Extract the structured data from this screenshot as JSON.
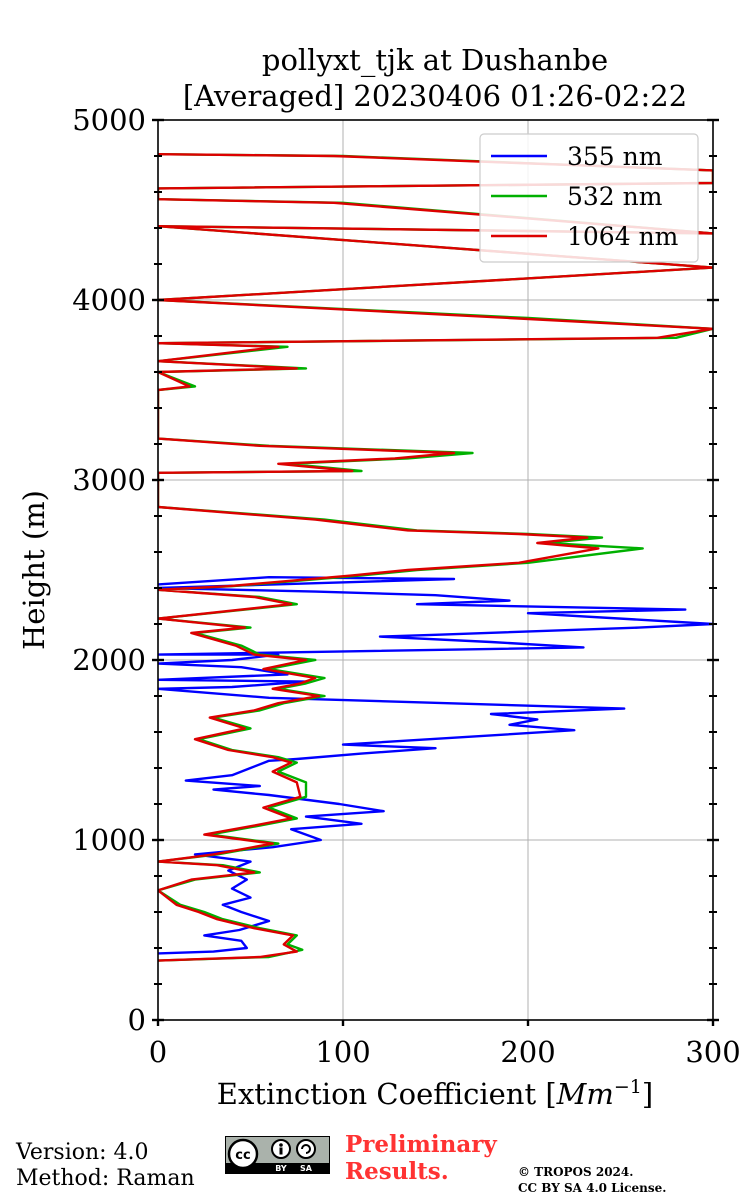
{
  "chart_data": {
    "type": "line",
    "title": [
      "pollyxt_tjk at Dushanbe",
      "[Averaged] 20230406 01:26-02:22"
    ],
    "xlabel": "Extinction Coefficient [$Mm^{-1}$]",
    "xlabel_display": {
      "prefix": "Extinction Coefficient [",
      "unit_base": "Mm",
      "unit_exp": "−1",
      "suffix": "]"
    },
    "ylabel": "Height (m)",
    "xlim": [
      0,
      300
    ],
    "ylim": [
      0,
      5000
    ],
    "xticks": [
      0,
      100,
      200,
      300
    ],
    "yticks": [
      0,
      1000,
      2000,
      3000,
      4000,
      5000
    ],
    "grid": true,
    "legend_position": "top-right",
    "series": [
      {
        "name": "355 nm",
        "color": "#0000ff",
        "points": [
          [
            0,
            370
          ],
          [
            30,
            380
          ],
          [
            48,
            400
          ],
          [
            45,
            440
          ],
          [
            25,
            470
          ],
          [
            44,
            500
          ],
          [
            60,
            550
          ],
          [
            45,
            600
          ],
          [
            35,
            640
          ],
          [
            50,
            680
          ],
          [
            40,
            730
          ],
          [
            48,
            780
          ],
          [
            38,
            830
          ],
          [
            50,
            880
          ],
          [
            20,
            920
          ],
          [
            62,
            960
          ],
          [
            88,
            1000
          ],
          [
            72,
            1060
          ],
          [
            110,
            1090
          ],
          [
            80,
            1130
          ],
          [
            122,
            1160
          ],
          [
            98,
            1200
          ],
          [
            60,
            1250
          ],
          [
            30,
            1280
          ],
          [
            55,
            1300
          ],
          [
            15,
            1330
          ],
          [
            40,
            1360
          ],
          [
            50,
            1400
          ],
          [
            60,
            1440
          ],
          [
            75,
            1450
          ],
          [
            110,
            1480
          ],
          [
            150,
            1510
          ],
          [
            100,
            1530
          ],
          [
            225,
            1610
          ],
          [
            190,
            1640
          ],
          [
            205,
            1670
          ],
          [
            180,
            1700
          ],
          [
            252,
            1730
          ],
          [
            60,
            1790
          ],
          [
            0,
            1840
          ],
          [
            40,
            1850
          ],
          [
            80,
            1880
          ],
          [
            0,
            1890
          ],
          [
            70,
            1920
          ],
          [
            45,
            1960
          ],
          [
            0,
            1980
          ],
          [
            40,
            2000
          ],
          [
            65,
            2030
          ],
          [
            0,
            2030
          ],
          [
            230,
            2070
          ],
          [
            180,
            2100
          ],
          [
            120,
            2130
          ],
          [
            150,
            2140
          ],
          [
            260,
            2180
          ],
          [
            300,
            2200
          ],
          [
            200,
            2260
          ],
          [
            285,
            2280
          ],
          [
            140,
            2310
          ],
          [
            190,
            2330
          ],
          [
            150,
            2360
          ],
          [
            85,
            2380
          ],
          [
            0,
            2400
          ],
          [
            160,
            2450
          ],
          [
            60,
            2460
          ],
          [
            0,
            2420
          ]
        ]
      },
      {
        "name": "532 nm",
        "color": "#00b000",
        "points": [
          [
            0,
            330
          ],
          [
            60,
            350
          ],
          [
            78,
            390
          ],
          [
            70,
            420
          ],
          [
            75,
            470
          ],
          [
            55,
            510
          ],
          [
            35,
            560
          ],
          [
            25,
            600
          ],
          [
            12,
            640
          ],
          [
            0,
            720
          ],
          [
            20,
            780
          ],
          [
            55,
            820
          ],
          [
            35,
            860
          ],
          [
            0,
            880
          ],
          [
            32,
            920
          ],
          [
            65,
            980
          ],
          [
            28,
            1030
          ],
          [
            55,
            1080
          ],
          [
            75,
            1120
          ],
          [
            60,
            1180
          ],
          [
            80,
            1240
          ],
          [
            80,
            1320
          ],
          [
            65,
            1380
          ],
          [
            75,
            1430
          ],
          [
            65,
            1460
          ],
          [
            40,
            1500
          ],
          [
            22,
            1560
          ],
          [
            50,
            1620
          ],
          [
            30,
            1680
          ],
          [
            55,
            1720
          ],
          [
            68,
            1760
          ],
          [
            90,
            1800
          ],
          [
            65,
            1840
          ],
          [
            80,
            1870
          ],
          [
            90,
            1900
          ],
          [
            60,
            1950
          ],
          [
            85,
            2000
          ],
          [
            55,
            2030
          ],
          [
            45,
            2080
          ],
          [
            20,
            2150
          ],
          [
            50,
            2180
          ],
          [
            0,
            2230
          ],
          [
            75,
            2310
          ],
          [
            55,
            2350
          ],
          [
            0,
            2390
          ],
          [
            40,
            2410
          ],
          [
            110,
            2470
          ],
          [
            140,
            2500
          ],
          [
            200,
            2540
          ],
          [
            262,
            2620
          ],
          [
            210,
            2650
          ],
          [
            240,
            2680
          ],
          [
            200,
            2700
          ],
          [
            140,
            2720
          ],
          [
            90,
            2780
          ],
          [
            0,
            2850
          ],
          [
            0,
            3040
          ],
          [
            110,
            3050
          ],
          [
            70,
            3090
          ],
          [
            135,
            3120
          ],
          [
            170,
            3150
          ],
          [
            60,
            3190
          ],
          [
            0,
            3230
          ],
          [
            0,
            3500
          ],
          [
            20,
            3520
          ],
          [
            0,
            3600
          ],
          [
            80,
            3620
          ],
          [
            0,
            3660
          ],
          [
            70,
            3740
          ],
          [
            0,
            3760
          ],
          [
            280,
            3790
          ],
          [
            300,
            3840
          ],
          [
            200,
            3900
          ],
          [
            0,
            4000
          ],
          [
            300,
            4180
          ],
          [
            0,
            4410
          ],
          [
            300,
            4370
          ],
          [
            100,
            4540
          ],
          [
            0,
            4560
          ],
          [
            0,
            4620
          ],
          [
            300,
            4650
          ],
          [
            300,
            4720
          ],
          [
            100,
            4800
          ],
          [
            0,
            4810
          ]
        ]
      },
      {
        "name": "1064 nm",
        "color": "#dd0000",
        "points": [
          [
            0,
            330
          ],
          [
            55,
            350
          ],
          [
            75,
            380
          ],
          [
            68,
            420
          ],
          [
            73,
            470
          ],
          [
            52,
            510
          ],
          [
            32,
            560
          ],
          [
            22,
            600
          ],
          [
            10,
            640
          ],
          [
            0,
            720
          ],
          [
            18,
            780
          ],
          [
            52,
            820
          ],
          [
            32,
            860
          ],
          [
            0,
            880
          ],
          [
            30,
            920
          ],
          [
            62,
            980
          ],
          [
            25,
            1030
          ],
          [
            52,
            1080
          ],
          [
            72,
            1120
          ],
          [
            57,
            1180
          ],
          [
            77,
            1240
          ],
          [
            75,
            1320
          ],
          [
            62,
            1380
          ],
          [
            72,
            1430
          ],
          [
            62,
            1460
          ],
          [
            38,
            1500
          ],
          [
            20,
            1560
          ],
          [
            47,
            1620
          ],
          [
            28,
            1680
          ],
          [
            52,
            1720
          ],
          [
            65,
            1760
          ],
          [
            87,
            1800
          ],
          [
            62,
            1840
          ],
          [
            77,
            1870
          ],
          [
            85,
            1900
          ],
          [
            57,
            1950
          ],
          [
            80,
            2000
          ],
          [
            52,
            2030
          ],
          [
            42,
            2080
          ],
          [
            18,
            2150
          ],
          [
            47,
            2180
          ],
          [
            0,
            2230
          ],
          [
            72,
            2310
          ],
          [
            52,
            2350
          ],
          [
            0,
            2390
          ],
          [
            38,
            2410
          ],
          [
            105,
            2470
          ],
          [
            135,
            2500
          ],
          [
            195,
            2540
          ],
          [
            238,
            2620
          ],
          [
            205,
            2650
          ],
          [
            232,
            2680
          ],
          [
            195,
            2700
          ],
          [
            135,
            2720
          ],
          [
            85,
            2780
          ],
          [
            0,
            2850
          ],
          [
            0,
            3040
          ],
          [
            105,
            3050
          ],
          [
            65,
            3090
          ],
          [
            128,
            3120
          ],
          [
            160,
            3150
          ],
          [
            55,
            3190
          ],
          [
            0,
            3230
          ],
          [
            0,
            3500
          ],
          [
            17,
            3520
          ],
          [
            0,
            3600
          ],
          [
            75,
            3620
          ],
          [
            0,
            3660
          ],
          [
            65,
            3740
          ],
          [
            0,
            3760
          ],
          [
            270,
            3790
          ],
          [
            300,
            3840
          ],
          [
            190,
            3900
          ],
          [
            0,
            4000
          ],
          [
            300,
            4180
          ],
          [
            0,
            4410
          ],
          [
            300,
            4370
          ],
          [
            95,
            4540
          ],
          [
            0,
            4560
          ],
          [
            0,
            4620
          ],
          [
            300,
            4650
          ],
          [
            300,
            4720
          ],
          [
            95,
            4800
          ],
          [
            0,
            4810
          ]
        ]
      }
    ]
  },
  "footer": {
    "version": "Version: 4.0",
    "method": "Method: Raman",
    "preliminary_line1": "Preliminary",
    "preliminary_line2": "Results.",
    "copyright_line1": "© TROPOS 2024.",
    "copyright_line2": "CC BY SA 4.0 License.",
    "license_logo": [
      "cc",
      "BY",
      "SA"
    ]
  }
}
